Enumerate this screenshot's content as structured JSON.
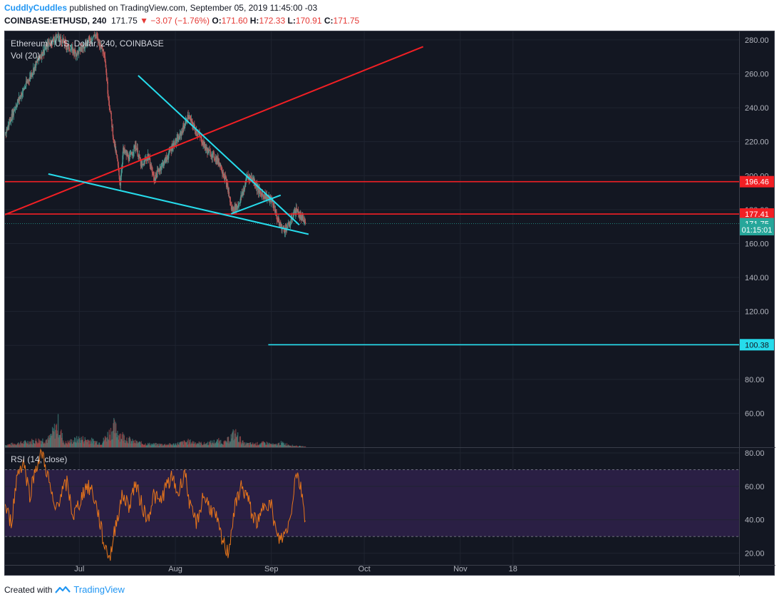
{
  "header": {
    "author": "CuddlyCuddles",
    "published_text": "published on TradingView.com, September 05, 2019 11:45:00 -03",
    "symbol": "COINBASE:ETHUSD, 240",
    "last": "171.75",
    "change": "▼ −3.07 (−1.76%)",
    "o_label": "O:",
    "o_value": "171.60",
    "h_label": "H:",
    "h_value": "172.33",
    "l_label": "L:",
    "l_value": "170.91",
    "c_label": "C:",
    "c_value": "171.75"
  },
  "footer": {
    "created_with": "Created with",
    "brand": "TradingView"
  },
  "chart_data": {
    "type": "candlestick",
    "title": "Ethereum / U.S. Dollar, 240, COINBASE",
    "volume_label": "Vol (20)",
    "rsi_label": "RSI (14, close)",
    "price_axis": {
      "range": [
        40,
        285
      ],
      "ticks": [
        280,
        260,
        240,
        220,
        200,
        180,
        160,
        140,
        120,
        100,
        80,
        60
      ]
    },
    "rsi_axis": {
      "range": [
        13,
        83
      ],
      "ticks": [
        80,
        60,
        40,
        20
      ],
      "bands": [
        30,
        70
      ]
    },
    "x_axis": {
      "ticks": [
        "Jul",
        "Aug",
        "Sep",
        "Oct",
        "Nov",
        "18"
      ],
      "tick_days": [
        15,
        46,
        77,
        107,
        138,
        155
      ],
      "range_days": [
        -9,
        228
      ]
    },
    "price_path": [
      [
        -9,
        225
      ],
      [
        -6,
        240
      ],
      [
        -2,
        255
      ],
      [
        2,
        270
      ],
      [
        5,
        278
      ],
      [
        8,
        282
      ],
      [
        11,
        276
      ],
      [
        14,
        272
      ],
      [
        17,
        278
      ],
      [
        20,
        283
      ],
      [
        23,
        272
      ],
      [
        24,
        250
      ],
      [
        26,
        220
      ],
      [
        27,
        210
      ],
      [
        28,
        195
      ],
      [
        29,
        215
      ],
      [
        31,
        210
      ],
      [
        33,
        218
      ],
      [
        35,
        205
      ],
      [
        37,
        212
      ],
      [
        39,
        198
      ],
      [
        41,
        205
      ],
      [
        43,
        210
      ],
      [
        45,
        218
      ],
      [
        47,
        222
      ],
      [
        50,
        235
      ],
      [
        52,
        228
      ],
      [
        54,
        222
      ],
      [
        56,
        215
      ],
      [
        58,
        212
      ],
      [
        60,
        208
      ],
      [
        62,
        198
      ],
      [
        63,
        190
      ],
      [
        64,
        180
      ],
      [
        66,
        182
      ],
      [
        68,
        192
      ],
      [
        69,
        200
      ],
      [
        71,
        198
      ],
      [
        73,
        190
      ],
      [
        75,
        188
      ],
      [
        77,
        185
      ],
      [
        78,
        180
      ],
      [
        79,
        173
      ],
      [
        80,
        170
      ],
      [
        81,
        168
      ],
      [
        82,
        170
      ],
      [
        83,
        172
      ],
      [
        84,
        178
      ],
      [
        85,
        180
      ],
      [
        86,
        176
      ],
      [
        87,
        174
      ],
      [
        88,
        171.75
      ]
    ],
    "volume": {
      "range": [
        0,
        250
      ],
      "path": [
        [
          -9,
          8
        ],
        [
          -4,
          15
        ],
        [
          0,
          22
        ],
        [
          5,
          28
        ],
        [
          8,
          80
        ],
        [
          10,
          14
        ],
        [
          15,
          30
        ],
        [
          18,
          25
        ],
        [
          22,
          15
        ],
        [
          26,
          70
        ],
        [
          28,
          45
        ],
        [
          32,
          20
        ],
        [
          36,
          12
        ],
        [
          40,
          10
        ],
        [
          45,
          10
        ],
        [
          50,
          20
        ],
        [
          55,
          12
        ],
        [
          60,
          22
        ],
        [
          62,
          16
        ],
        [
          65,
          50
        ],
        [
          68,
          12
        ],
        [
          72,
          12
        ],
        [
          75,
          15
        ],
        [
          78,
          8
        ],
        [
          80,
          15
        ],
        [
          84,
          5
        ],
        [
          88,
          2
        ]
      ]
    },
    "rsi": [
      [
        -9,
        48
      ],
      [
        -7,
        38
      ],
      [
        -5,
        68
      ],
      [
        -3,
        75
      ],
      [
        -1,
        55
      ],
      [
        1,
        72
      ],
      [
        3,
        80
      ],
      [
        5,
        65
      ],
      [
        7,
        45
      ],
      [
        9,
        55
      ],
      [
        11,
        62
      ],
      [
        13,
        42
      ],
      [
        15,
        50
      ],
      [
        17,
        60
      ],
      [
        19,
        58
      ],
      [
        21,
        45
      ],
      [
        23,
        25
      ],
      [
        25,
        18
      ],
      [
        27,
        40
      ],
      [
        29,
        55
      ],
      [
        31,
        48
      ],
      [
        33,
        62
      ],
      [
        35,
        50
      ],
      [
        37,
        40
      ],
      [
        39,
        55
      ],
      [
        41,
        50
      ],
      [
        43,
        60
      ],
      [
        45,
        65
      ],
      [
        47,
        55
      ],
      [
        49,
        70
      ],
      [
        51,
        45
      ],
      [
        53,
        38
      ],
      [
        55,
        55
      ],
      [
        57,
        48
      ],
      [
        59,
        42
      ],
      [
        61,
        28
      ],
      [
        63,
        20
      ],
      [
        65,
        45
      ],
      [
        67,
        60
      ],
      [
        69,
        55
      ],
      [
        71,
        42
      ],
      [
        73,
        38
      ],
      [
        75,
        52
      ],
      [
        77,
        48
      ],
      [
        79,
        28
      ],
      [
        81,
        30
      ],
      [
        83,
        40
      ],
      [
        85,
        70
      ],
      [
        87,
        55
      ],
      [
        88,
        40
      ]
    ],
    "drawings": {
      "trendlines": [
        {
          "color": "#f21f24",
          "from": [
            -9,
            177
          ],
          "to": [
            126,
            276
          ]
        },
        {
          "color": "#26dcec",
          "from": [
            34,
            259
          ],
          "to": [
            86,
            171
          ]
        },
        {
          "color": "#26dcec",
          "from": [
            5,
            201
          ],
          "to": [
            89,
            165.5
          ]
        },
        {
          "color": "#26dcec",
          "from": [
            64,
            177.5
          ],
          "to": [
            80,
            188.5
          ]
        }
      ],
      "horizontal_lines": [
        {
          "price": 196.46,
          "color": "#f21f24",
          "from_day": -9
        },
        {
          "price": 177.41,
          "color": "#f21f24",
          "from_day": -9
        },
        {
          "price": 100.38,
          "color": "#26dcec",
          "from_day": 76
        }
      ]
    },
    "price_labels": [
      {
        "text": "196.46",
        "price": 196.46,
        "bg": "#f21f24",
        "fg": "#ffffff"
      },
      {
        "text": "177.41",
        "price": 177.41,
        "bg": "#f21f24",
        "fg": "#ffffff"
      },
      {
        "text": "171.75",
        "price": 171.75,
        "bg": "#26a69a",
        "fg": "#ffffff"
      },
      {
        "text": "01:15:01",
        "price": 168.2,
        "bg": "#26a69a",
        "fg": "#ffffff"
      },
      {
        "text": "100.38",
        "price": 100.38,
        "bg": "#26dcec",
        "fg": "#131722"
      }
    ],
    "colors": {
      "background": "#131722",
      "grid": "#1f2430",
      "up": "#4a9a92",
      "down": "#c05656",
      "rsi_line": "#e8751a",
      "rsi_band": "#2a1f44",
      "axis_text": "#b2b5be"
    }
  }
}
